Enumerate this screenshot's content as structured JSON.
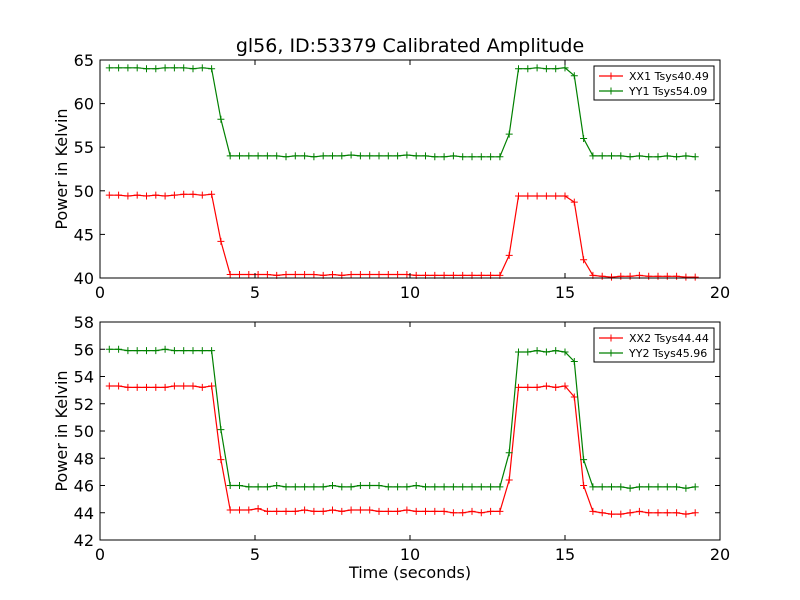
{
  "figure": {
    "title": "gl56, ID:53379 Calibrated Amplitude",
    "xlabel": "Time (seconds)"
  },
  "chart_data": [
    {
      "type": "line",
      "title": "gl56, ID:53379 Calibrated Amplitude",
      "xlabel": "",
      "ylabel": "Power in Kelvin",
      "xlim": [
        0,
        20
      ],
      "ylim": [
        40,
        65
      ],
      "xticks": [
        0,
        5,
        10,
        15,
        20
      ],
      "yticks": [
        40,
        45,
        50,
        55,
        60,
        65
      ],
      "grid": false,
      "legend_position": "top-right",
      "x": [
        0.3,
        0.6,
        0.9,
        1.2,
        1.5,
        1.8,
        2.1,
        2.4,
        2.7,
        3.0,
        3.3,
        3.6,
        3.9,
        4.2,
        4.5,
        4.8,
        5.1,
        5.4,
        5.7,
        6.0,
        6.3,
        6.6,
        6.9,
        7.2,
        7.5,
        7.8,
        8.1,
        8.4,
        8.7,
        9.0,
        9.3,
        9.6,
        9.9,
        10.2,
        10.5,
        10.8,
        11.1,
        11.4,
        11.7,
        12.0,
        12.3,
        12.6,
        12.9,
        13.2,
        13.5,
        13.8,
        14.1,
        14.4,
        14.7,
        15.0,
        15.3,
        15.6,
        15.9,
        16.2,
        16.5,
        16.8,
        17.1,
        17.4,
        17.7,
        18.0,
        18.3,
        18.6,
        18.9,
        19.2
      ],
      "series": [
        {
          "name": "XX1 Tsys40.49",
          "color": "#ff0000",
          "values": [
            49.5,
            49.5,
            49.4,
            49.5,
            49.4,
            49.5,
            49.4,
            49.5,
            49.6,
            49.6,
            49.5,
            49.6,
            44.2,
            40.4,
            40.4,
            40.4,
            40.4,
            40.4,
            40.3,
            40.4,
            40.4,
            40.4,
            40.4,
            40.3,
            40.4,
            40.3,
            40.4,
            40.4,
            40.4,
            40.4,
            40.4,
            40.4,
            40.4,
            40.3,
            40.3,
            40.3,
            40.3,
            40.3,
            40.3,
            40.3,
            40.3,
            40.3,
            40.3,
            42.6,
            49.4,
            49.4,
            49.4,
            49.4,
            49.4,
            49.4,
            48.7,
            42.1,
            40.3,
            40.2,
            40.1,
            40.2,
            40.2,
            40.3,
            40.2,
            40.2,
            40.2,
            40.2,
            40.1,
            40.1
          ]
        },
        {
          "name": "YY1 Tsys54.09",
          "color": "#008000",
          "values": [
            64.1,
            64.1,
            64.1,
            64.1,
            64.0,
            64.0,
            64.1,
            64.1,
            64.1,
            64.0,
            64.1,
            64.0,
            58.2,
            54.0,
            54.0,
            54.0,
            54.0,
            54.0,
            54.0,
            53.9,
            54.0,
            54.0,
            53.9,
            54.0,
            54.0,
            54.0,
            54.1,
            54.0,
            54.0,
            54.0,
            54.0,
            54.0,
            54.1,
            54.0,
            54.0,
            53.9,
            53.9,
            54.0,
            53.9,
            53.9,
            53.9,
            53.9,
            53.9,
            56.5,
            64.0,
            64.0,
            64.1,
            64.0,
            64.0,
            64.1,
            63.2,
            56.0,
            54.0,
            54.0,
            54.0,
            54.0,
            53.9,
            54.0,
            53.9,
            53.9,
            54.0,
            53.9,
            54.0,
            53.9
          ]
        }
      ]
    },
    {
      "type": "line",
      "title": "",
      "xlabel": "Time (seconds)",
      "ylabel": "Power in Kelvin",
      "xlim": [
        0,
        20
      ],
      "ylim": [
        42,
        58
      ],
      "xticks": [
        0,
        5,
        10,
        15,
        20
      ],
      "yticks": [
        42,
        44,
        46,
        48,
        50,
        52,
        54,
        56,
        58
      ],
      "grid": false,
      "legend_position": "top-right",
      "x": [
        0.3,
        0.6,
        0.9,
        1.2,
        1.5,
        1.8,
        2.1,
        2.4,
        2.7,
        3.0,
        3.3,
        3.6,
        3.9,
        4.2,
        4.5,
        4.8,
        5.1,
        5.4,
        5.7,
        6.0,
        6.3,
        6.6,
        6.9,
        7.2,
        7.5,
        7.8,
        8.1,
        8.4,
        8.7,
        9.0,
        9.3,
        9.6,
        9.9,
        10.2,
        10.5,
        10.8,
        11.1,
        11.4,
        11.7,
        12.0,
        12.3,
        12.6,
        12.9,
        13.2,
        13.5,
        13.8,
        14.1,
        14.4,
        14.7,
        15.0,
        15.3,
        15.6,
        15.9,
        16.2,
        16.5,
        16.8,
        17.1,
        17.4,
        17.7,
        18.0,
        18.3,
        18.6,
        18.9,
        19.2
      ],
      "series": [
        {
          "name": "XX2 Tsys44.44",
          "color": "#ff0000",
          "values": [
            53.3,
            53.3,
            53.2,
            53.2,
            53.2,
            53.2,
            53.2,
            53.3,
            53.3,
            53.3,
            53.2,
            53.3,
            47.9,
            44.2,
            44.2,
            44.2,
            44.3,
            44.1,
            44.1,
            44.1,
            44.1,
            44.2,
            44.1,
            44.1,
            44.2,
            44.1,
            44.2,
            44.2,
            44.2,
            44.1,
            44.1,
            44.1,
            44.2,
            44.1,
            44.1,
            44.1,
            44.1,
            44.0,
            44.0,
            44.1,
            44.0,
            44.1,
            44.1,
            46.4,
            53.2,
            53.2,
            53.2,
            53.3,
            53.2,
            53.3,
            52.5,
            46.0,
            44.1,
            44.0,
            43.9,
            43.9,
            44.0,
            44.1,
            44.0,
            44.0,
            44.0,
            44.0,
            43.9,
            44.0
          ]
        },
        {
          "name": "YY2 Tsys45.96",
          "color": "#008000",
          "values": [
            56.0,
            56.0,
            55.9,
            55.9,
            55.9,
            55.9,
            56.0,
            55.9,
            55.9,
            55.9,
            55.9,
            55.9,
            50.1,
            46.0,
            46.0,
            45.9,
            45.9,
            45.9,
            46.0,
            45.9,
            45.9,
            45.9,
            45.9,
            45.9,
            46.0,
            45.9,
            45.9,
            46.0,
            46.0,
            46.0,
            45.9,
            45.9,
            45.9,
            46.0,
            45.9,
            45.9,
            45.9,
            45.9,
            45.9,
            45.9,
            45.9,
            45.9,
            45.9,
            48.4,
            55.8,
            55.8,
            55.9,
            55.8,
            55.9,
            55.8,
            55.1,
            47.9,
            45.9,
            45.9,
            45.9,
            45.9,
            45.8,
            45.9,
            45.9,
            45.9,
            45.9,
            45.9,
            45.8,
            45.9
          ]
        }
      ]
    }
  ]
}
